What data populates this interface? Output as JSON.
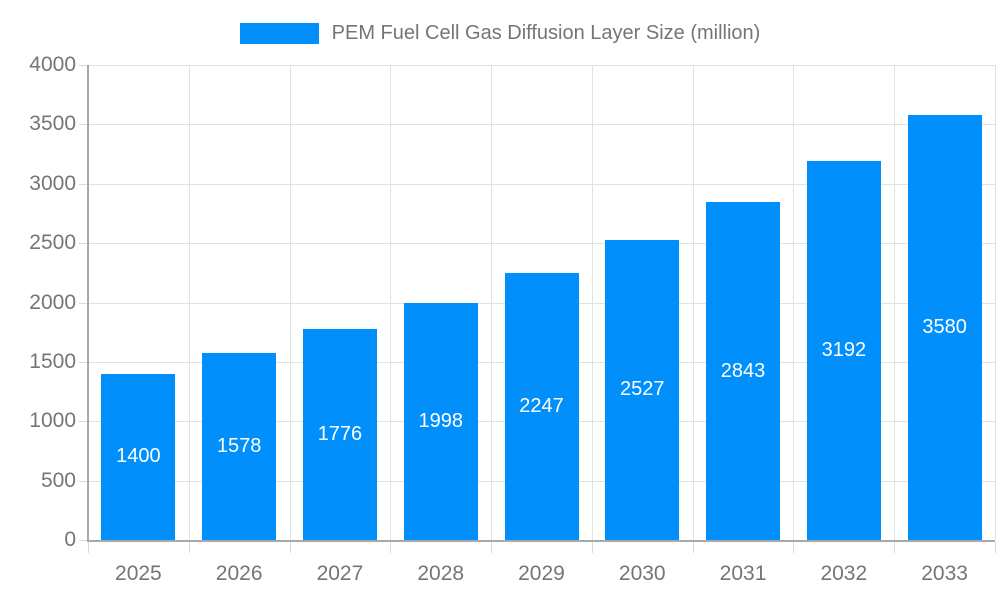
{
  "legend": {
    "label": "PEM Fuel Cell Gas Diffusion Layer Size (million)"
  },
  "chart_data": {
    "type": "bar",
    "title": "PEM Fuel Cell Gas Diffusion Layer Size (million)",
    "categories": [
      "2025",
      "2026",
      "2027",
      "2028",
      "2029",
      "2030",
      "2031",
      "2032",
      "2033"
    ],
    "values": [
      1400,
      1578,
      1776,
      1998,
      2247,
      2527,
      2843,
      3192,
      3580
    ],
    "xlabel": "",
    "ylabel": "",
    "ylim": [
      0,
      4000
    ],
    "ytick_step": 500,
    "ytick_labels": [
      "0",
      "500",
      "1000",
      "1500",
      "2000",
      "2500",
      "3000",
      "3500",
      "4000"
    ],
    "grid": true,
    "legend_position": "top",
    "bar_color": "#008FFB",
    "bar_label_color": "#FFFFFF",
    "axis_label_color": "#757575",
    "gridline_color": "#E2E2E2",
    "axis_line_color": "#A8A8A8",
    "tick_mark_color": "#D9D9D9"
  }
}
